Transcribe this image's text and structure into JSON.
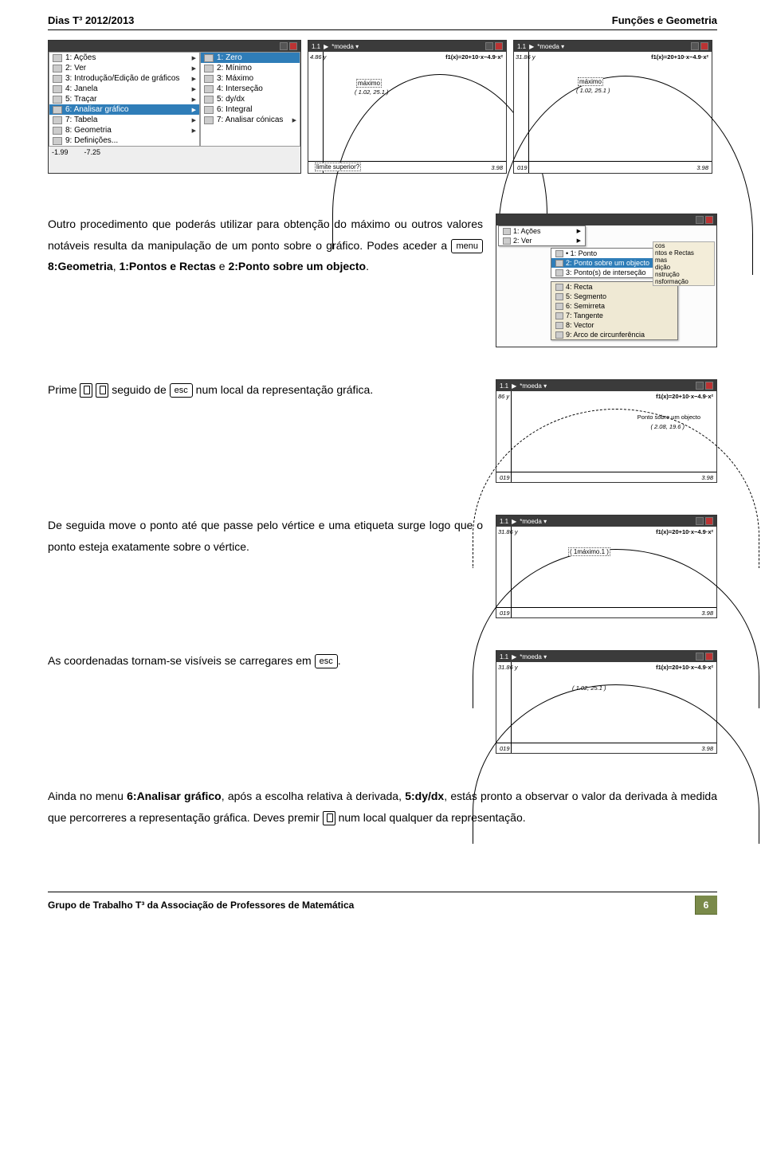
{
  "header": {
    "left": "Dias T³ 2012/2013",
    "right": "Funções e Geometria"
  },
  "topShots": {
    "menuShot": {
      "top_title": "",
      "left_menu": [
        {
          "icon": "ptr",
          "label": "1: Ações",
          "arrow": true
        },
        {
          "icon": "eye",
          "label": "2: Ver",
          "arrow": true
        },
        {
          "icon": "grf",
          "label": "3: Introdução/Edição de gráficos",
          "arrow": true
        },
        {
          "icon": "win",
          "label": "4: Janela",
          "arrow": true
        },
        {
          "icon": "trc",
          "label": "5: Traçar",
          "arrow": true
        },
        {
          "icon": "anl",
          "label": "6: Analisar gráfico",
          "arrow": true,
          "sel": true
        },
        {
          "icon": "tbl",
          "label": "7: Tabela",
          "arrow": true
        },
        {
          "icon": "geo",
          "label": "8: Geometria",
          "arrow": true
        },
        {
          "icon": "def",
          "label": "9: Definições...",
          "arrow": false
        }
      ],
      "right_menu": [
        {
          "n": "1",
          "label": "Zero",
          "sel": true
        },
        {
          "n": "2",
          "label": "Mínimo"
        },
        {
          "n": "3",
          "label": "Máximo"
        },
        {
          "n": "4",
          "label": "Interseção"
        },
        {
          "n": "5",
          "label": "dy/dx"
        },
        {
          "n": "6",
          "label": "Integral"
        },
        {
          "n": "7",
          "label": "Analisar cónicas",
          "arrow": true
        }
      ],
      "bottom_left": "-1.99",
      "bottom_val": "-7.25"
    },
    "shot2": {
      "tb_left": "1.1",
      "tb_mid": "*moeda ▾",
      "ylab": "4.86  y",
      "fx": "f1(x)=20+10·x−4.9·x²",
      "max_lbl": "máximo",
      "max_pt": "( 1.02, 25.1 )",
      "lim": "limite superior?",
      "xr": "3.98"
    },
    "shot3": {
      "tb_left": "1.1",
      "tb_mid": "*moeda ▾",
      "ylab": "31.86  y",
      "fx": "f1(x)=20+10·x−4.9·x²",
      "max_lbl": "máximo",
      "max_pt": "( 1.02, 25.1 )",
      "xl": "019",
      "xr": "3.98"
    }
  },
  "para1": {
    "t1": "Outro procedimento que poderás utilizar para obtenção do máximo ou outros valores notáveis resulta da manipulação de um ponto sobre o gráfico. Podes aceder a ",
    "key": "menu",
    "t2": " 8:Geometria",
    ", ": "",
    "t3": ", ",
    "b2": "1:Pontos e Rectas",
    "t4": " e ",
    "b3": "2:Ponto sobre um objecto",
    "t5": "."
  },
  "rightCtx": {
    "tb_left": "",
    "main": [
      {
        "label": "1: Ações",
        "arrow": true
      },
      {
        "label": "2: Ver",
        "arrow": true
      }
    ],
    "mid": [
      {
        "label": "• 1: Ponto"
      },
      {
        "label": "2: Ponto sobre um objecto",
        "sel": true
      },
      {
        "label": "3: Ponto(s) de interseção"
      }
    ],
    "below": [
      {
        "label": "4: Recta"
      },
      {
        "label": "5: Segmento"
      },
      {
        "label": "6: Semirreta"
      },
      {
        "label": "7: Tangente"
      },
      {
        "label": "8: Vector"
      },
      {
        "label": "9: Arco de circunferência"
      }
    ],
    "rightpop": [
      "cos",
      "ntos e Rectas",
      "mas",
      "dição",
      "nstrução",
      "nsformação"
    ]
  },
  "para2": {
    "pre": "Prime ",
    "mid": " seguido de ",
    "key": "esc",
    "post": " num local da representação gráfica."
  },
  "shot_ponto": {
    "tb_left": "1.1",
    "tb_mid": "*moeda ▾",
    "ylab": "86  y",
    "fx": "f1(x)=20+10·x−4.9·x²",
    "tip": "Ponto sobre um objecto",
    "pt": "( 2.08, 19.6 )",
    "xl": "019",
    "xr": "3.98"
  },
  "para3": "De seguida move o ponto até que passe pelo vértice e uma etiqueta surge logo que o ponto esteja exatamente sobre o vértice.",
  "shot_vertice": {
    "tb_left": "1.1",
    "tb_mid": "*moeda ▾",
    "ylab": "31.86  y",
    "fx": "f1(x)=20+10·x−4.9·x²",
    "pt": "( 1máximo.1 )",
    "xl": "019",
    "xr": "3.98"
  },
  "para4": {
    "t1": "As coordenadas tornam-se visíveis se carregares em ",
    "key": "esc",
    "t2": "."
  },
  "shot_coords": {
    "tb_left": "1.1",
    "tb_mid": "*moeda ▾",
    "ylab": "31.86  y",
    "fx": "f1(x)=20+10·x−4.9·x²",
    "pt": "( 1.02, 25.1 )",
    "xl": "019",
    "xr": "3.98"
  },
  "para5": {
    "t1": "Ainda no menu ",
    "b1": "6:Analisar gráfico",
    "t2": ", após a escolha relativa à derivada, ",
    "b2": "5:dy/dx",
    "t3": ", estás pronto a observar o valor da derivada à medida que percorreres a representação gráfica. Deves premir ",
    "t4": " num local qualquer da representação."
  },
  "footer": {
    "left": "Grupo de Trabalho T³ da Associação de Professores de Matemática",
    "page": "6"
  }
}
